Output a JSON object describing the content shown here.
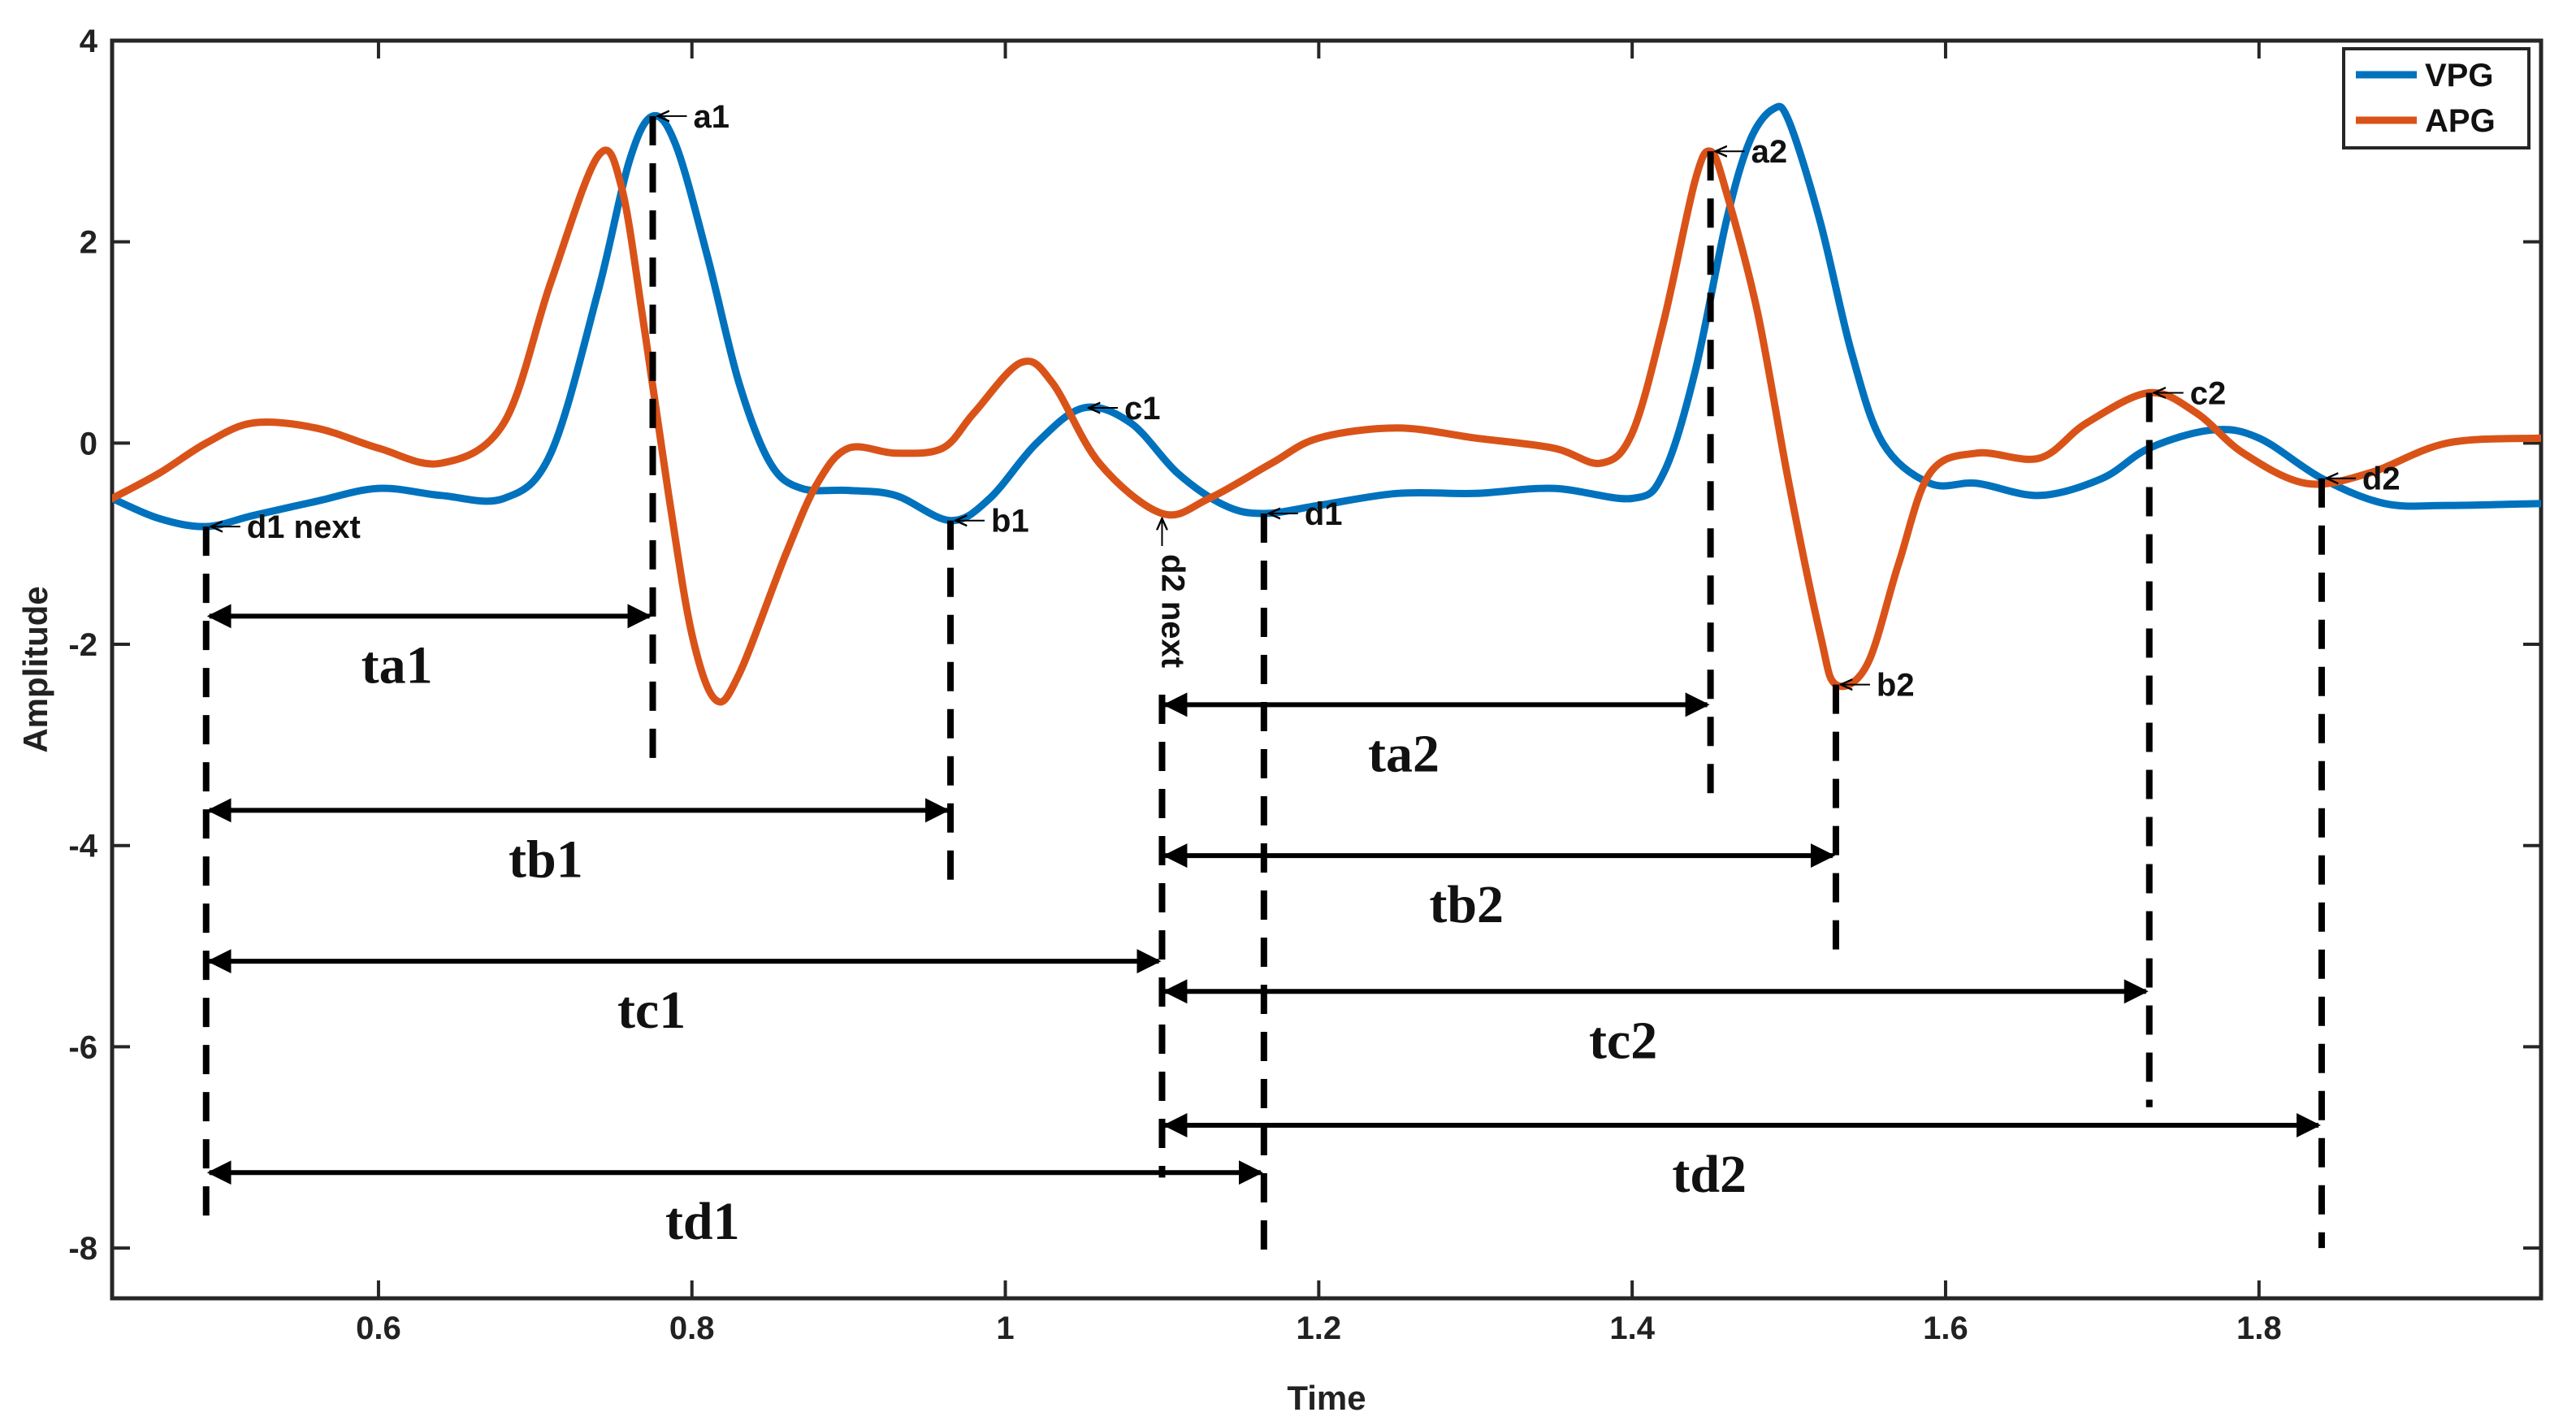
{
  "chart_data": {
    "type": "line",
    "xlabel": "Time",
    "ylabel": "Amplitude",
    "xlim": [
      0.43,
      1.98
    ],
    "ylim": [
      -8.5,
      4
    ],
    "x_ticks": [
      0.6,
      0.8,
      1,
      1.2,
      1.4,
      1.6,
      1.8
    ],
    "x_tick_labels": [
      "0.6",
      "0.8",
      "1",
      "1.2",
      "1.4",
      "1.6",
      "1.8"
    ],
    "y_ticks": [
      4,
      2,
      0,
      -2,
      -4,
      -6,
      -8
    ],
    "y_tick_labels": [
      "4",
      "2",
      "0",
      "-2",
      "-4",
      "-6",
      "-8"
    ],
    "grid": false,
    "legend": {
      "position": "top-right",
      "entries": [
        "VPG",
        "APG"
      ]
    },
    "series": [
      {
        "name": "VPG",
        "color": "#0072BD",
        "points": [
          [
            0.43,
            -0.55
          ],
          [
            0.46,
            -0.75
          ],
          [
            0.49,
            -0.83
          ],
          [
            0.52,
            -0.72
          ],
          [
            0.56,
            -0.58
          ],
          [
            0.6,
            -0.45
          ],
          [
            0.64,
            -0.52
          ],
          [
            0.68,
            -0.55
          ],
          [
            0.71,
            -0.1
          ],
          [
            0.74,
            1.5
          ],
          [
            0.76,
            2.8
          ],
          [
            0.775,
            3.25
          ],
          [
            0.79,
            2.95
          ],
          [
            0.81,
            1.85
          ],
          [
            0.83,
            0.6
          ],
          [
            0.85,
            -0.2
          ],
          [
            0.87,
            -0.45
          ],
          [
            0.9,
            -0.47
          ],
          [
            0.93,
            -0.52
          ],
          [
            0.965,
            -0.77
          ],
          [
            0.99,
            -0.55
          ],
          [
            1.02,
            0.0
          ],
          [
            1.05,
            0.35
          ],
          [
            1.08,
            0.2
          ],
          [
            1.11,
            -0.3
          ],
          [
            1.14,
            -0.62
          ],
          [
            1.165,
            -0.7
          ],
          [
            1.2,
            -0.62
          ],
          [
            1.25,
            -0.5
          ],
          [
            1.3,
            -0.5
          ],
          [
            1.35,
            -0.45
          ],
          [
            1.4,
            -0.55
          ],
          [
            1.42,
            -0.3
          ],
          [
            1.44,
            0.7
          ],
          [
            1.46,
            2.2
          ],
          [
            1.475,
            3.0
          ],
          [
            1.49,
            3.32
          ],
          [
            1.5,
            3.2
          ],
          [
            1.52,
            2.2
          ],
          [
            1.54,
            0.9
          ],
          [
            1.56,
            0.0
          ],
          [
            1.59,
            -0.4
          ],
          [
            1.62,
            -0.4
          ],
          [
            1.66,
            -0.52
          ],
          [
            1.7,
            -0.35
          ],
          [
            1.73,
            -0.05
          ],
          [
            1.77,
            0.13
          ],
          [
            1.8,
            0.05
          ],
          [
            1.84,
            -0.35
          ],
          [
            1.88,
            -0.6
          ],
          [
            1.92,
            -0.62
          ],
          [
            1.98,
            -0.6
          ]
        ]
      },
      {
        "name": "APG",
        "color": "#D95319",
        "points": [
          [
            0.43,
            -0.55
          ],
          [
            0.46,
            -0.3
          ],
          [
            0.49,
            0.0
          ],
          [
            0.52,
            0.2
          ],
          [
            0.56,
            0.15
          ],
          [
            0.6,
            -0.05
          ],
          [
            0.64,
            -0.2
          ],
          [
            0.68,
            0.2
          ],
          [
            0.71,
            1.6
          ],
          [
            0.74,
            2.85
          ],
          [
            0.755,
            2.55
          ],
          [
            0.77,
            1.1
          ],
          [
            0.785,
            -0.5
          ],
          [
            0.8,
            -1.9
          ],
          [
            0.815,
            -2.55
          ],
          [
            0.83,
            -2.3
          ],
          [
            0.86,
            -1.1
          ],
          [
            0.88,
            -0.4
          ],
          [
            0.9,
            -0.05
          ],
          [
            0.93,
            -0.1
          ],
          [
            0.96,
            -0.05
          ],
          [
            0.98,
            0.3
          ],
          [
            1.01,
            0.8
          ],
          [
            1.03,
            0.6
          ],
          [
            1.06,
            -0.2
          ],
          [
            1.1,
            -0.7
          ],
          [
            1.13,
            -0.55
          ],
          [
            1.17,
            -0.2
          ],
          [
            1.2,
            0.05
          ],
          [
            1.25,
            0.15
          ],
          [
            1.3,
            0.05
          ],
          [
            1.35,
            -0.05
          ],
          [
            1.38,
            -0.2
          ],
          [
            1.4,
            0.1
          ],
          [
            1.42,
            1.2
          ],
          [
            1.44,
            2.6
          ],
          [
            1.45,
            2.9
          ],
          [
            1.46,
            2.5
          ],
          [
            1.48,
            1.3
          ],
          [
            1.5,
            -0.4
          ],
          [
            1.52,
            -1.9
          ],
          [
            1.53,
            -2.4
          ],
          [
            1.55,
            -2.2
          ],
          [
            1.57,
            -1.2
          ],
          [
            1.59,
            -0.3
          ],
          [
            1.62,
            -0.1
          ],
          [
            1.66,
            -0.15
          ],
          [
            1.69,
            0.2
          ],
          [
            1.73,
            0.5
          ],
          [
            1.76,
            0.3
          ],
          [
            1.79,
            -0.1
          ],
          [
            1.83,
            -0.4
          ],
          [
            1.87,
            -0.3
          ],
          [
            1.92,
            0.0
          ],
          [
            1.98,
            0.05
          ]
        ]
      }
    ],
    "point_labels": [
      {
        "text": "a1",
        "x": 0.775,
        "y": 3.25
      },
      {
        "text": "b1",
        "x": 0.965,
        "y": -0.77
      },
      {
        "text": "c1",
        "x": 1.05,
        "y": 0.35
      },
      {
        "text": "d1",
        "x": 1.165,
        "y": -0.7
      },
      {
        "text": "d1 next",
        "x": 0.49,
        "y": -0.83
      },
      {
        "text": "d2 next",
        "x": 1.1,
        "y": -0.7,
        "vertical": true
      },
      {
        "text": "a2",
        "x": 1.45,
        "y": 2.9
      },
      {
        "text": "b2",
        "x": 1.53,
        "y": -2.4
      },
      {
        "text": "c2",
        "x": 1.73,
        "y": 0.5
      },
      {
        "text": "d2",
        "x": 1.84,
        "y": -0.35
      }
    ],
    "dashed_markers": [
      {
        "x": 0.49,
        "y_top": -0.83,
        "y_bottom": -7.8
      },
      {
        "x": 0.775,
        "y_top": 3.25,
        "y_bottom": -3.15
      },
      {
        "x": 0.965,
        "y_top": -0.77,
        "y_bottom": -4.35
      },
      {
        "x": 1.1,
        "y_top": -2.5,
        "y_bottom": -7.3
      },
      {
        "x": 1.165,
        "y_top": -0.7,
        "y_bottom": -8.1
      },
      {
        "x": 1.45,
        "y_top": 2.9,
        "y_bottom": -3.55
      },
      {
        "x": 1.53,
        "y_top": -2.4,
        "y_bottom": -5.15
      },
      {
        "x": 1.73,
        "y_top": 0.5,
        "y_bottom": -6.6
      },
      {
        "x": 1.84,
        "y_top": -0.35,
        "y_bottom": -8.0
      }
    ],
    "intervals": [
      {
        "label": "ta1",
        "x_start": 0.49,
        "x_end": 0.775,
        "y": -1.72
      },
      {
        "label": "tb1",
        "x_start": 0.49,
        "x_end": 0.965,
        "y": -3.65
      },
      {
        "label": "tc1",
        "x_start": 0.49,
        "x_end": 1.1,
        "y": -5.15
      },
      {
        "label": "td1",
        "x_start": 0.49,
        "x_end": 1.165,
        "y": -7.25
      },
      {
        "label": "ta2",
        "x_start": 1.1,
        "x_end": 1.45,
        "y": -2.6
      },
      {
        "label": "tb2",
        "x_start": 1.1,
        "x_end": 1.53,
        "y": -4.1
      },
      {
        "label": "tc2",
        "x_start": 1.1,
        "x_end": 1.73,
        "y": -5.45
      },
      {
        "label": "td2",
        "x_start": 1.1,
        "x_end": 1.84,
        "y": -6.78
      }
    ]
  }
}
